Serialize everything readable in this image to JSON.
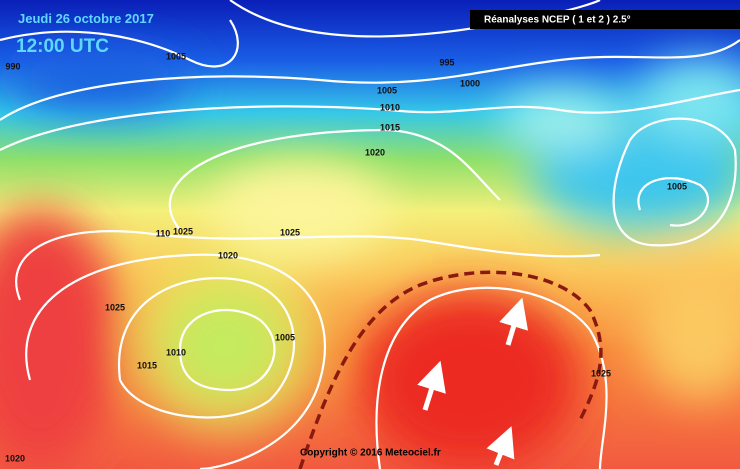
{
  "header": {
    "date": "Jeudi 26 octobre 2017",
    "time": "12:00 UTC",
    "source": "Réanalyses NCEP ( 1 et 2 ) 2.5°"
  },
  "footer": {
    "copyright": "Copyright © 2016 Meteociel.fr"
  },
  "isobar_labels": [
    1005,
    995,
    1000,
    990,
    1005,
    1010,
    1015,
    1020,
    1005,
    110,
    1025,
    1025,
    1020,
    1025,
    1005,
    1010,
    1015,
    1025,
    1020
  ]
}
